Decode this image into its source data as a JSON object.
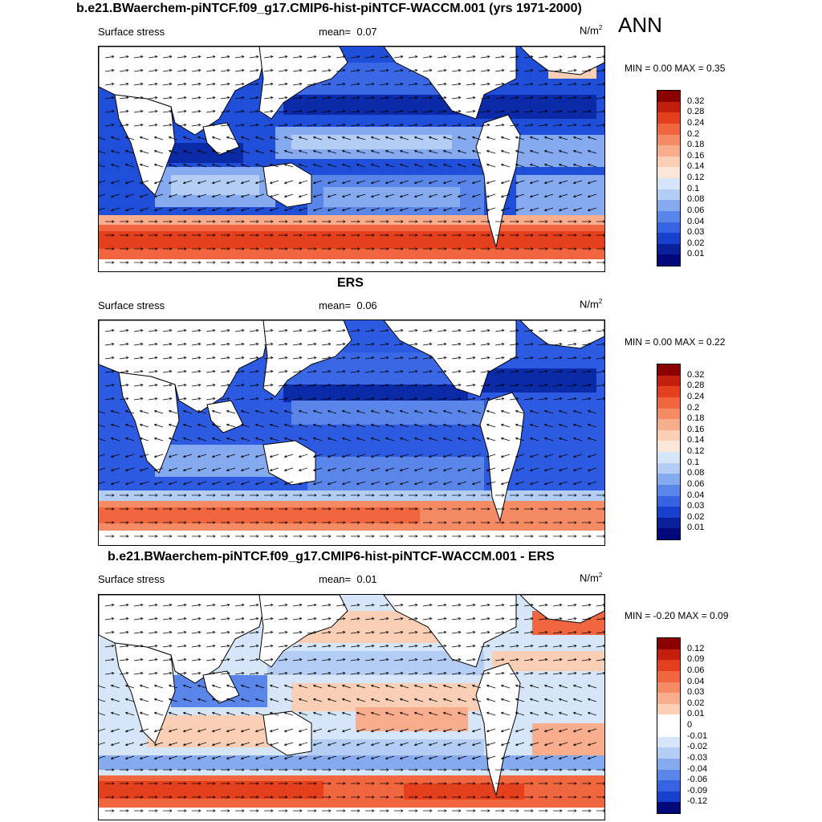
{
  "season": "ANN",
  "panels": [
    {
      "title": "b.e21.BWaerchem-piNTCF.f09_g17.CMIP6-hist-piNTCF-WACCM.001 (yrs 1971-2000)",
      "left_label": "Surface stress",
      "mean_label": "mean=",
      "mean_value": "0.07",
      "units": "N/m",
      "units_exp": "2",
      "minmax": "MIN =   0.00 MAX =   0.35",
      "colorbar_labels": [
        "0.32",
        "0.28",
        "0.24",
        "0.2",
        "0.18",
        "0.16",
        "0.14",
        "0.12",
        "0.1",
        "0.08",
        "0.06",
        "0.04",
        "0.03",
        "0.02",
        "0.01"
      ],
      "colorbar_colors": [
        "#8b0000",
        "#c2200d",
        "#e5401e",
        "#f0673f",
        "#f48b65",
        "#f8ad8d",
        "#fbcfb5",
        "#fbe7da",
        "#d6e6f8",
        "#b4cdf4",
        "#86aaf0",
        "#5a86ea",
        "#3563e2",
        "#1740cd",
        "#0a1f9a",
        "#01087a"
      ]
    },
    {
      "title": "ERS",
      "left_label": "Surface stress",
      "mean_label": "mean=",
      "mean_value": "0.06",
      "units": "N/m",
      "units_exp": "2",
      "minmax": "MIN =   0.00 MAX =   0.22",
      "colorbar_labels": [
        "0.32",
        "0.28",
        "0.24",
        "0.2",
        "0.18",
        "0.16",
        "0.14",
        "0.12",
        "0.1",
        "0.08",
        "0.06",
        "0.04",
        "0.03",
        "0.02",
        "0.01"
      ],
      "colorbar_colors": [
        "#8b0000",
        "#c2200d",
        "#e5401e",
        "#f0673f",
        "#f48b65",
        "#f8ad8d",
        "#fbcfb5",
        "#fbe7da",
        "#d6e6f8",
        "#b4cdf4",
        "#86aaf0",
        "#5a86ea",
        "#3563e2",
        "#1740cd",
        "#0a1f9a",
        "#01087a"
      ]
    },
    {
      "title": "b.e21.BWaerchem-piNTCF.f09_g17.CMIP6-hist-piNTCF-WACCM.001 - ERS",
      "left_label": "Surface stress",
      "mean_label": "mean=",
      "mean_value": "0.01",
      "units": "N/m",
      "units_exp": "2",
      "minmax": "MIN =  -0.20 MAX =   0.09",
      "colorbar_labels": [
        "0.12",
        "0.09",
        "0.06",
        "0.04",
        "0.03",
        "0.02",
        "0.01",
        "0",
        "-0.01",
        "-0.02",
        "-0.03",
        "-0.04",
        "-0.06",
        "-0.09",
        "-0.12"
      ],
      "colorbar_colors": [
        "#8b0000",
        "#c2200d",
        "#e5401e",
        "#f0673f",
        "#f48b65",
        "#f8ad8d",
        "#fbcfb5",
        "#ffffff",
        "#ffffff",
        "#d6e6f8",
        "#b4cdf4",
        "#86aaf0",
        "#5a86ea",
        "#3563e2",
        "#1740cd",
        "#01087a"
      ]
    }
  ]
}
